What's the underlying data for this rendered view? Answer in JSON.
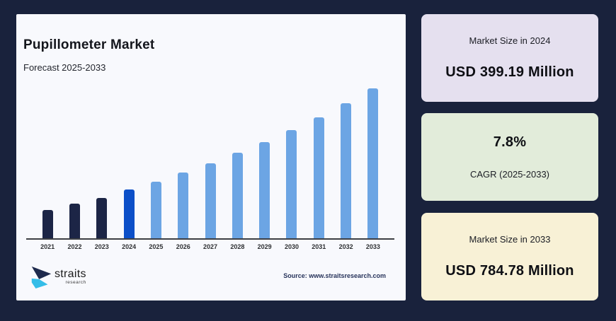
{
  "page": {
    "background_color": "#19223c",
    "panel_color": "#f8f9fd"
  },
  "panel": {
    "title": "Pupillometer Market",
    "subtitle": "Forecast 2025-2033",
    "source": "Source: www.straitsresearch.com",
    "logo": {
      "name": "straits",
      "sub": "research",
      "icon_navy": "#1e2a4d",
      "icon_cyan": "#35bde8"
    }
  },
  "cards": [
    {
      "label": "Market Size in 2024",
      "value": "USD 399.19 Million",
      "background": "#e5e0ef"
    },
    {
      "value": "7.8%",
      "label": "CAGR (2025-2033)",
      "background": "#e2ecda"
    },
    {
      "label": "Market Size in 2033",
      "value": "USD 784.78 Million",
      "background": "#f8f1d6"
    }
  ],
  "chart_data": {
    "type": "bar",
    "title": "Pupillometer Market",
    "subtitle": "Forecast 2025-2033",
    "unit": "USD Million",
    "categories": [
      "2021",
      "2022",
      "2023",
      "2024",
      "2025",
      "2026",
      "2027",
      "2028",
      "2029",
      "2030",
      "2031",
      "2032",
      "2033"
    ],
    "values": [
      320,
      345,
      368,
      399.19,
      430.33,
      463.89,
      500.08,
      539.08,
      581.13,
      626.46,
      675.32,
      728.0,
      784.78
    ],
    "bar_types": [
      "historical",
      "historical",
      "historical",
      "current",
      "forecast",
      "forecast",
      "forecast",
      "forecast",
      "forecast",
      "forecast",
      "forecast",
      "forecast",
      "forecast"
    ],
    "colors": {
      "historical": "#1c2546",
      "current": "#0c4fc8",
      "forecast": "#6ca5e4"
    },
    "axis_color": "#3d3f44",
    "ylim": [
      213,
      785
    ],
    "grid": false,
    "legend": false,
    "annotations": {
      "market_size_2024": "USD 399.19 Million",
      "cagr_2025_2033": "7.8%",
      "market_size_2033": "USD 784.78 Million"
    }
  }
}
